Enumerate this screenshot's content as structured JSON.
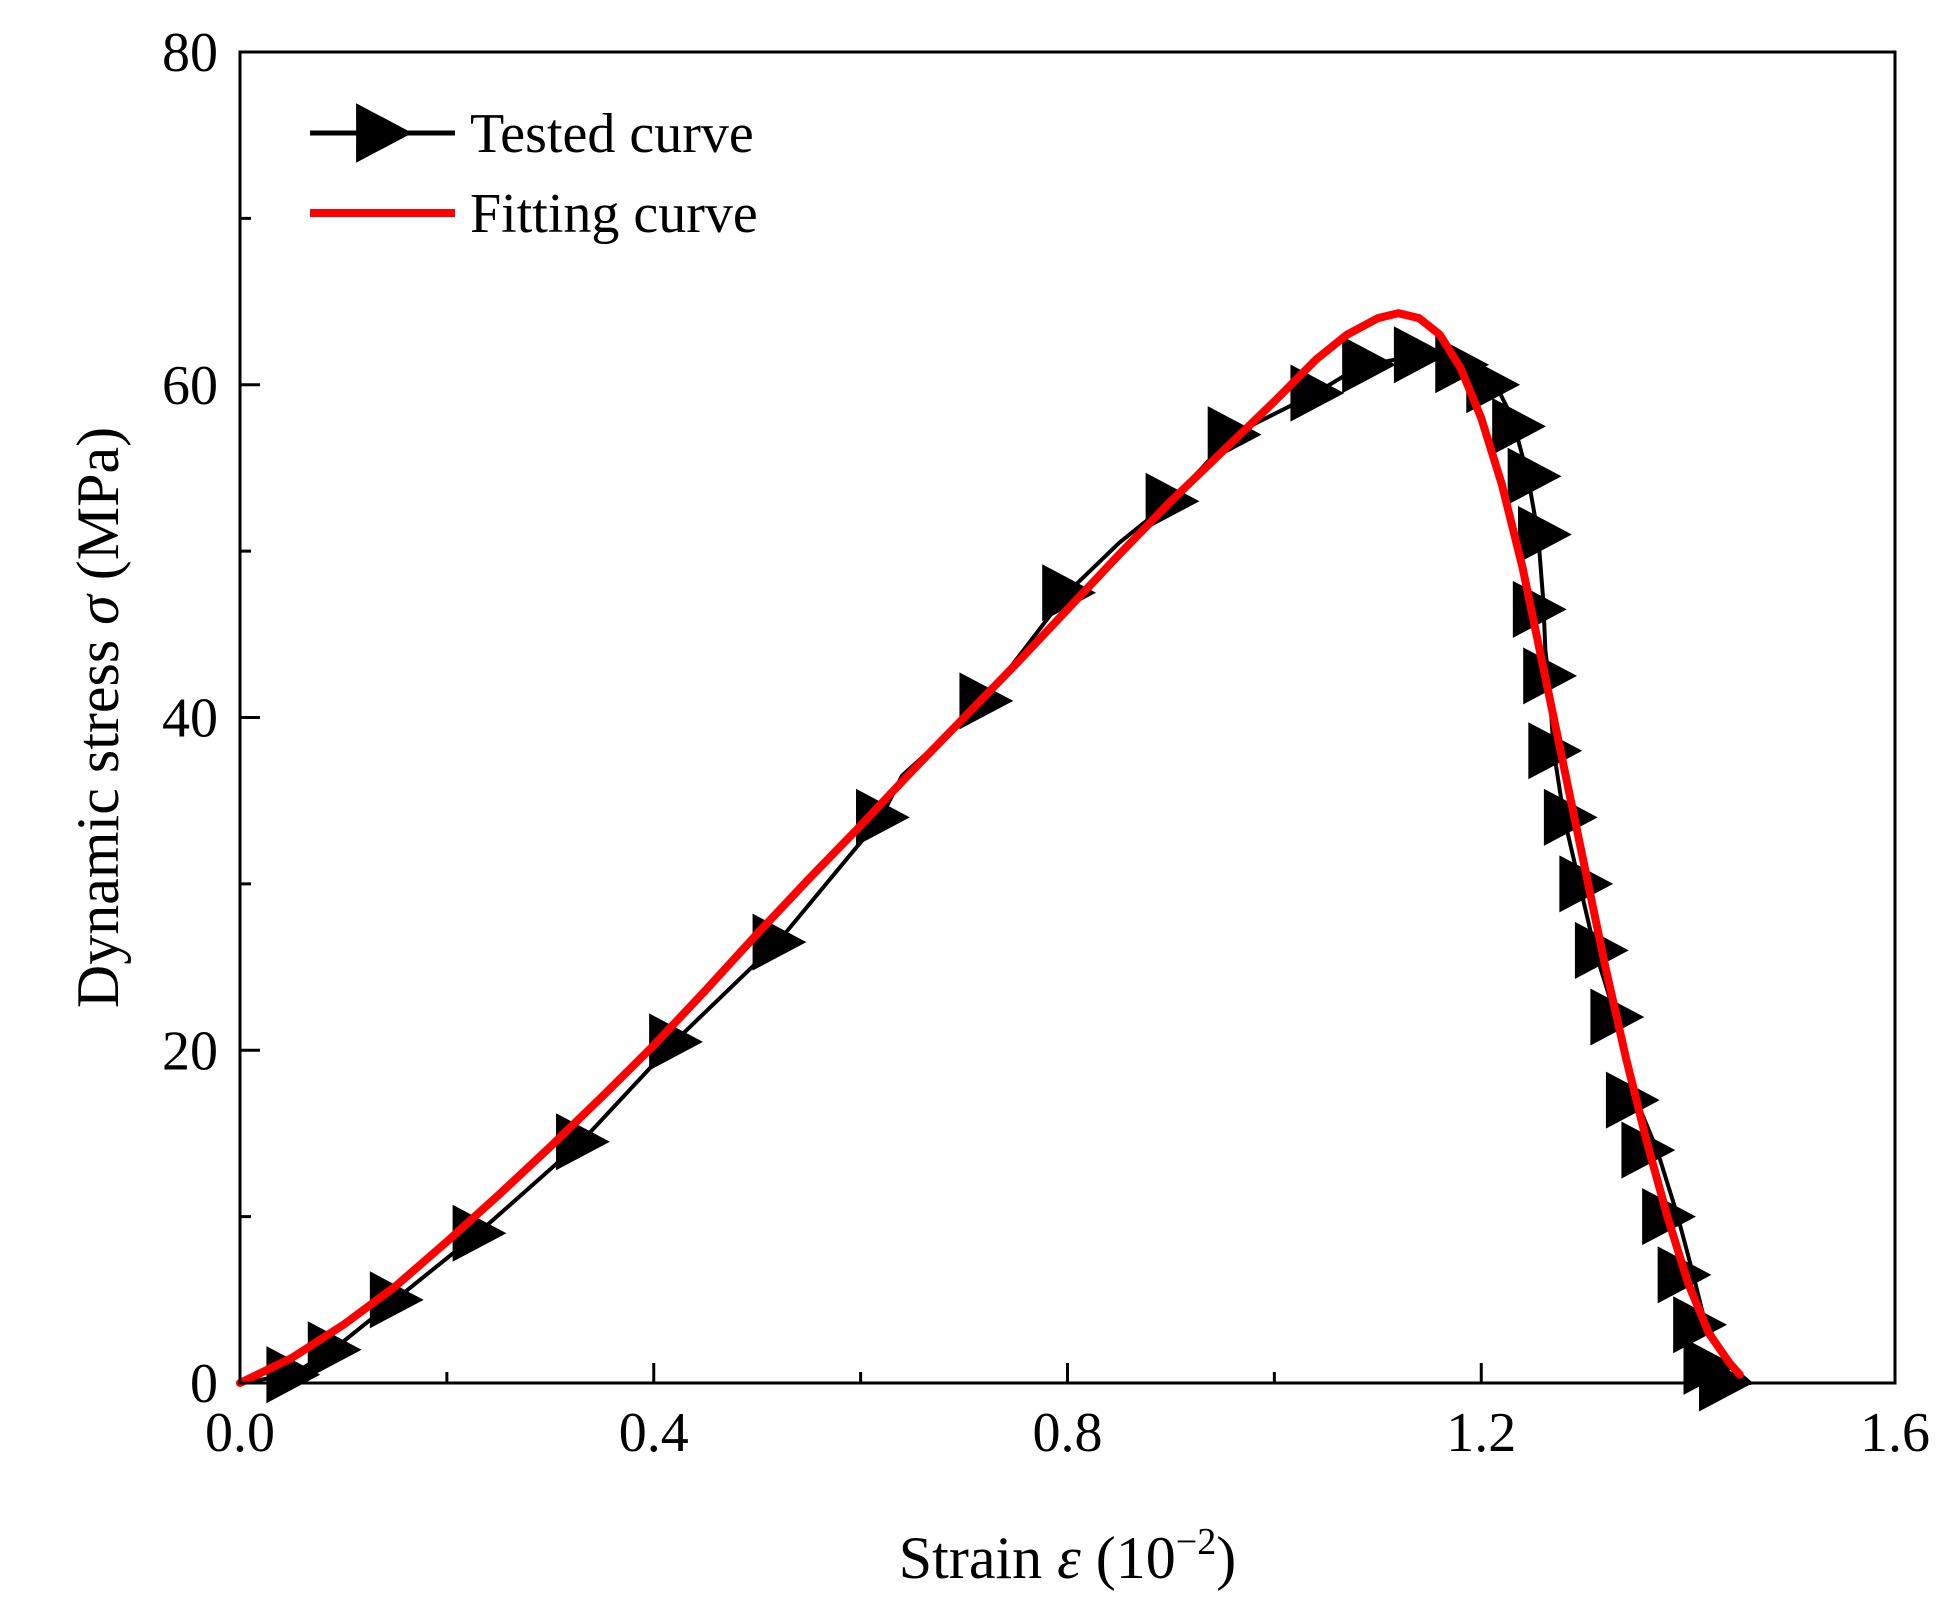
{
  "chart_data": {
    "type": "line",
    "xlabel": {
      "prefix": "Strain ",
      "symbol": "ε",
      "unit_open": " (10",
      "exponent": "−2",
      "unit_close": ")"
    },
    "ylabel": {
      "prefix": "Dynamic stress ",
      "symbol": "σ",
      "unit": " (MPa)"
    },
    "xlim": [
      0.0,
      1.6
    ],
    "ylim": [
      0,
      80
    ],
    "x_ticks": [
      {
        "value": 0.0,
        "label": "0.0"
      },
      {
        "value": 0.4,
        "label": "0.4"
      },
      {
        "value": 0.8,
        "label": "0.8"
      },
      {
        "value": 1.2,
        "label": "1.2"
      },
      {
        "value": 1.6,
        "label": "1.6"
      }
    ],
    "x_minor_ticks": [
      0.2,
      0.6,
      1.0,
      1.4
    ],
    "y_ticks": [
      {
        "value": 0,
        "label": "0"
      },
      {
        "value": 20,
        "label": "20"
      },
      {
        "value": 40,
        "label": "40"
      },
      {
        "value": 60,
        "label": "60"
      },
      {
        "value": 80,
        "label": "80"
      }
    ],
    "y_minor_ticks": [
      10,
      30,
      50,
      70
    ],
    "grid": false,
    "legend_position": "top-left",
    "series": [
      {
        "name": "Tested curve",
        "color": "#000000",
        "marker": "triangle-right",
        "x": [
          0.0,
          0.05,
          0.09,
          0.15,
          0.23,
          0.33,
          0.42,
          0.52,
          0.62,
          0.64,
          0.72,
          0.8,
          0.85,
          0.9,
          0.96,
          1.04,
          1.08,
          1.1,
          1.14,
          1.19,
          1.21,
          1.23,
          1.245,
          1.255,
          1.26,
          1.262,
          1.265,
          1.27,
          1.28,
          1.295,
          1.31,
          1.33,
          1.35,
          1.37,
          1.39,
          1.405,
          1.415,
          1.43,
          1.445,
          1.46
        ],
        "y": [
          0.0,
          0.5,
          2.0,
          5.0,
          9.0,
          14.5,
          20.5,
          26.5,
          34.0,
          36.5,
          41.0,
          47.5,
          50.5,
          53.0,
          57.0,
          59.5,
          61.0,
          61.3,
          61.8,
          61.2,
          60.5,
          58.0,
          54.5,
          51.0,
          47.0,
          44.0,
          42.5,
          38.0,
          34.0,
          30.0,
          26.0,
          22.0,
          17.0,
          14.0,
          10.0,
          6.5,
          4.0,
          2.0,
          0.8,
          0.0
        ],
        "marker_x": [
          0.05,
          0.09,
          0.15,
          0.23,
          0.33,
          0.42,
          0.52,
          0.62,
          0.72,
          0.8,
          0.9,
          0.96,
          1.04,
          1.09,
          1.14,
          1.18,
          1.21,
          1.235,
          1.25,
          1.26,
          1.255,
          1.265,
          1.27,
          1.285,
          1.3,
          1.315,
          1.33,
          1.345,
          1.36,
          1.38,
          1.395,
          1.41,
          1.42,
          1.435
        ],
        "marker_y": [
          0.5,
          2.0,
          5.0,
          9.0,
          14.5,
          20.5,
          26.5,
          34.0,
          41.0,
          47.5,
          53.0,
          57.0,
          59.5,
          61.2,
          61.8,
          61.2,
          60.0,
          57.5,
          54.5,
          51.0,
          46.5,
          42.5,
          38.0,
          34.0,
          30.0,
          26.0,
          22.0,
          17.0,
          14.0,
          10.0,
          6.5,
          3.5,
          1.0,
          0.0
        ]
      },
      {
        "name": "Fitting curve",
        "color": "#ff0000",
        "marker": "none",
        "x": [
          0.0,
          0.05,
          0.1,
          0.15,
          0.2,
          0.25,
          0.3,
          0.35,
          0.4,
          0.45,
          0.5,
          0.55,
          0.6,
          0.65,
          0.7,
          0.75,
          0.8,
          0.85,
          0.9,
          0.95,
          1.0,
          1.04,
          1.07,
          1.1,
          1.12,
          1.14,
          1.16,
          1.18,
          1.2,
          1.22,
          1.24,
          1.26,
          1.28,
          1.3,
          1.32,
          1.34,
          1.36,
          1.38,
          1.4,
          1.42,
          1.44,
          1.45
        ],
        "y": [
          0.0,
          1.5,
          3.5,
          5.8,
          8.5,
          11.3,
          14.2,
          17.2,
          20.3,
          23.6,
          27.0,
          30.3,
          33.5,
          36.8,
          40.0,
          43.2,
          46.5,
          49.8,
          53.0,
          56.0,
          59.0,
          61.5,
          63.0,
          64.0,
          64.3,
          64.0,
          63.0,
          61.0,
          58.0,
          54.0,
          49.0,
          43.0,
          37.0,
          31.0,
          25.0,
          19.5,
          14.5,
          10.0,
          6.0,
          3.0,
          1.2,
          0.5
        ]
      }
    ]
  }
}
